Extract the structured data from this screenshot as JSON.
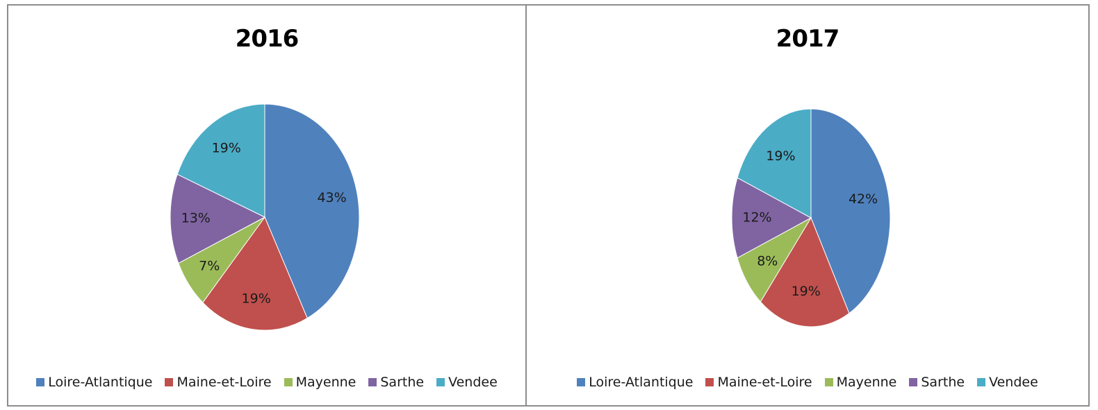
{
  "chart_data": [
    {
      "type": "pie",
      "title": "2016",
      "categories": [
        "Loire-Atlantique",
        "Maine-et-Loire",
        "Mayenne",
        "Sarthe",
        "Vendee"
      ],
      "values": [
        43,
        19,
        7,
        13,
        19
      ],
      "data_labels": [
        "43%",
        "19%",
        "7%",
        "13%",
        "19%"
      ],
      "colors": [
        "#4f81bd",
        "#c0504d",
        "#9bbb59",
        "#8064a2",
        "#4bacc6"
      ],
      "legend": {
        "position": "bottom",
        "entries": [
          "Loire-Atlantique",
          "Maine-et-Loire",
          "Mayenne",
          "Sarthe",
          "Vendee"
        ]
      }
    },
    {
      "type": "pie",
      "title": "2017",
      "categories": [
        "Loire-Atlantique",
        "Maine-et-Loire",
        "Mayenne",
        "Sarthe",
        "Vendee"
      ],
      "values": [
        42,
        19,
        8,
        12,
        19
      ],
      "data_labels": [
        "42%",
        "19%",
        "8%",
        "12%",
        "19%"
      ],
      "colors": [
        "#4f81bd",
        "#c0504d",
        "#9bbb59",
        "#8064a2",
        "#4bacc6"
      ],
      "legend": {
        "position": "bottom",
        "entries": [
          "Loire-Atlantique",
          "Maine-et-Loire",
          "Mayenne",
          "Sarthe",
          "Vendee"
        ]
      }
    }
  ]
}
